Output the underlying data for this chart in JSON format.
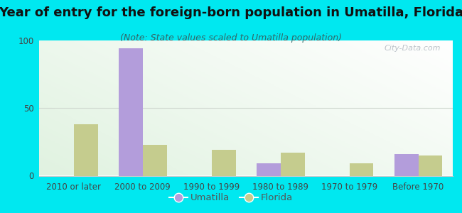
{
  "title": "Year of entry for the foreign-born population in Umatilla, Florida",
  "subtitle": "(Note: State values scaled to Umatilla population)",
  "categories": [
    "2010 or later",
    "2000 to 2009",
    "1990 to 1999",
    "1980 to 1989",
    "1970 to 1979",
    "Before 1970"
  ],
  "umatilla_values": [
    0,
    94,
    0,
    9,
    0,
    16
  ],
  "florida_values": [
    38,
    23,
    19,
    17,
    9,
    15
  ],
  "umatilla_color": "#b39ddb",
  "florida_color": "#c5cc8e",
  "background_outer": "#00e8f0",
  "ylim": [
    0,
    100
  ],
  "yticks": [
    0,
    50,
    100
  ],
  "bar_width": 0.35,
  "title_fontsize": 13,
  "subtitle_fontsize": 9,
  "tick_fontsize": 8.5,
  "legend_fontsize": 9.5,
  "watermark_text": "City-Data.com",
  "watermark_color": "#b0b8c0",
  "grid_color": "#e8e8e8",
  "axis_line_color": "#cccccc"
}
